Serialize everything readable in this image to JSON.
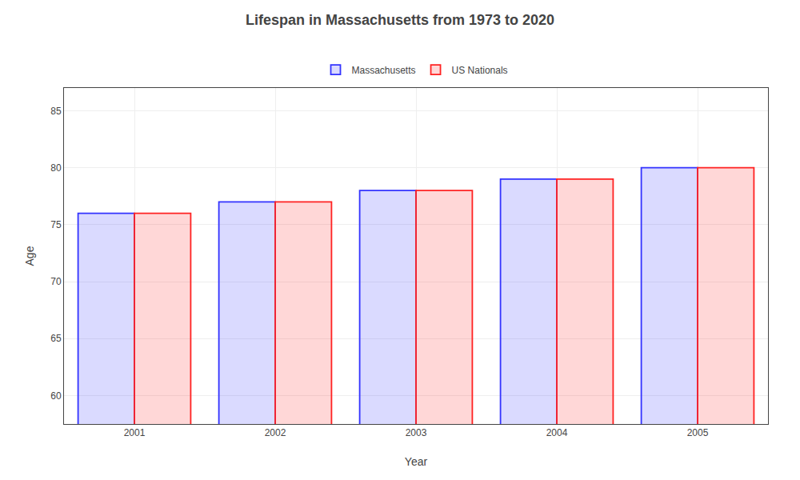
{
  "chart_data": {
    "type": "bar",
    "title": "Lifespan in Massachusetts from 1973 to 2020",
    "xlabel": "Year",
    "ylabel": "Age",
    "categories": [
      "2001",
      "2002",
      "2003",
      "2004",
      "2005"
    ],
    "series": [
      {
        "name": "Massachusetts",
        "color": "#3333ff",
        "values": [
          76,
          77,
          78,
          79,
          80
        ]
      },
      {
        "name": "US Nationals",
        "color": "#ff2222",
        "values": [
          76,
          77,
          78,
          79,
          80
        ]
      }
    ],
    "ylim": [
      57.5,
      87
    ],
    "yticks": [
      60,
      65,
      70,
      75,
      80,
      85
    ],
    "grid": true,
    "legend": "top"
  }
}
